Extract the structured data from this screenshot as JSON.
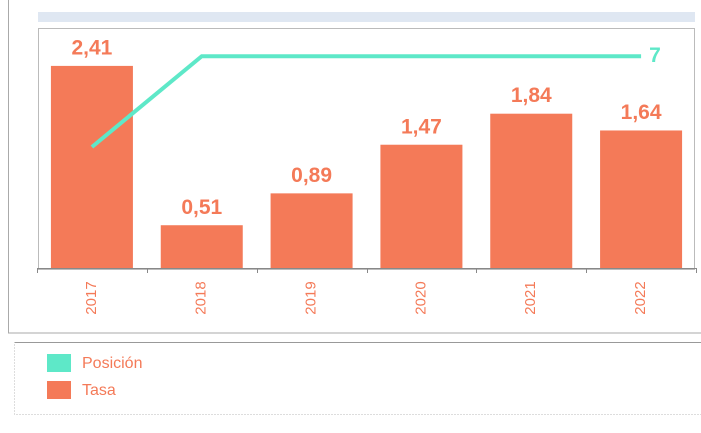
{
  "chart_data": {
    "type": "bar",
    "categories": [
      "2017",
      "2018",
      "2019",
      "2020",
      "2021",
      "2022"
    ],
    "series": [
      {
        "name": "Posición",
        "type": "line",
        "axis": "y2",
        "color": "#5ee8c8",
        "values": [
          4,
          7,
          7,
          7,
          7,
          7
        ],
        "value_labels": [
          null,
          null,
          null,
          null,
          null,
          "7"
        ]
      },
      {
        "name": "Tasa",
        "type": "bar",
        "color": "#f47a58",
        "values": [
          2.41,
          0.51,
          0.89,
          1.47,
          1.84,
          1.64
        ],
        "value_labels": [
          "2,41",
          "0,51",
          "0,89",
          "1,47",
          "1,84",
          "1,64"
        ]
      }
    ],
    "ylim": [
      0,
      2.85
    ],
    "y2lim": [
      0,
      7.9
    ],
    "legend": "bottom-left"
  }
}
